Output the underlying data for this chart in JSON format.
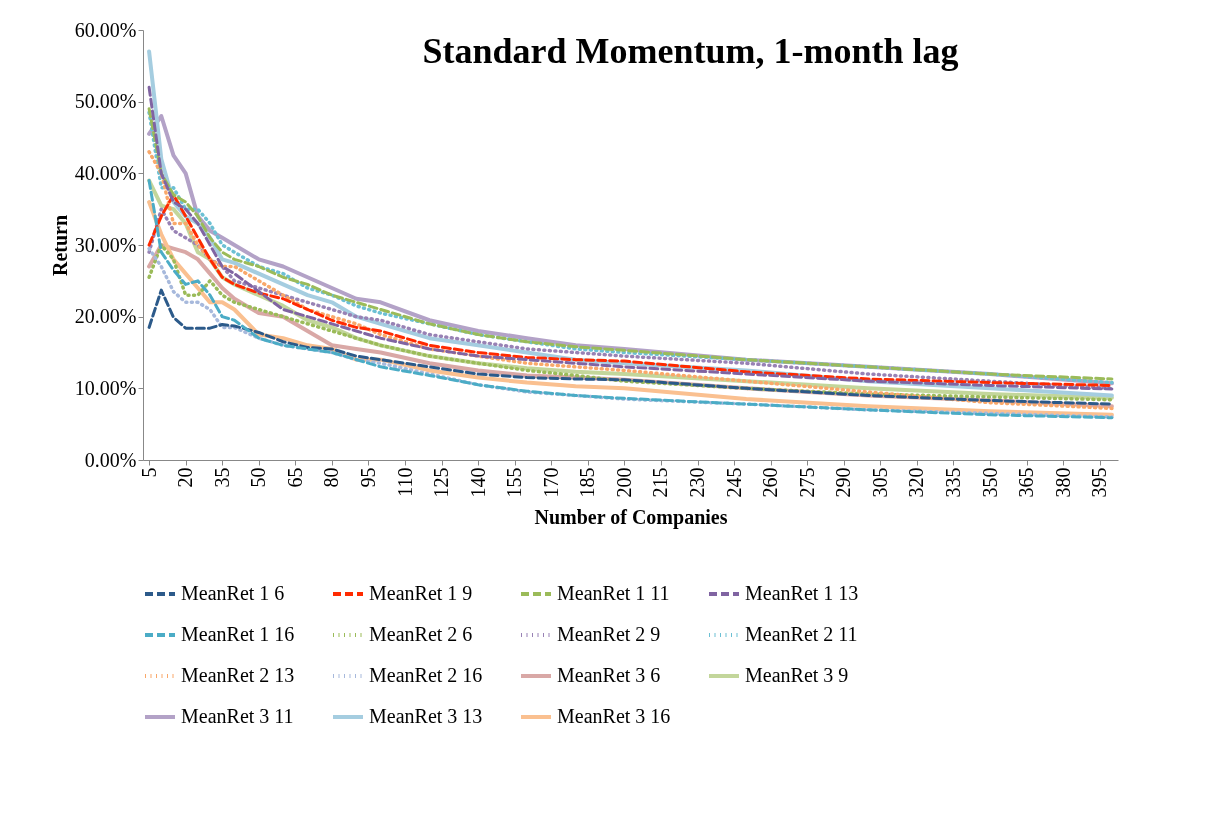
{
  "chart_data": {
    "type": "line",
    "title": "Standard Momentum, 1-month lag",
    "xlabel": "Number of Companies",
    "ylabel": "Return",
    "x": [
      5,
      10,
      15,
      20,
      25,
      30,
      35,
      40,
      50,
      60,
      70,
      80,
      90,
      100,
      120,
      140,
      160,
      180,
      200,
      250,
      300,
      350,
      400
    ],
    "xlim": [
      2.5,
      402.5
    ],
    "xticks": [
      5,
      20,
      35,
      50,
      65,
      80,
      95,
      110,
      125,
      140,
      155,
      170,
      185,
      200,
      215,
      230,
      245,
      260,
      275,
      290,
      305,
      320,
      335,
      350,
      365,
      380,
      395
    ],
    "ylim": [
      0,
      60
    ],
    "yticks": [
      {
        "value": 0,
        "label": "0.00%"
      },
      {
        "value": 10,
        "label": "10.00%"
      },
      {
        "value": 20,
        "label": "20.00%"
      },
      {
        "value": 30,
        "label": "30.00%"
      },
      {
        "value": 40,
        "label": "40.00%"
      },
      {
        "value": 50,
        "label": "50.00%"
      },
      {
        "value": 60,
        "label": "60.00%"
      }
    ],
    "grid": false,
    "legend": "bottom",
    "marker": "none",
    "series": [
      {
        "name": "MeanRet 1 6",
        "color": "#2c5a8a",
        "line_style": "dashed",
        "values": [
          18.5,
          23.7,
          19.9,
          18.4,
          18.4,
          18.4,
          18.9,
          18.7,
          17.8,
          16.5,
          15.7,
          15.5,
          14.5,
          14,
          13,
          12,
          11.5,
          11.3,
          11.2,
          10,
          9,
          8.3,
          7.8
        ]
      },
      {
        "name": "MeanRet 1 9",
        "color": "#ff2a00",
        "line_style": "dashed",
        "values": [
          30,
          34,
          37,
          34,
          31,
          28,
          25.5,
          24.5,
          23.3,
          22.5,
          21,
          19.5,
          18.5,
          18,
          16,
          15,
          14.3,
          14,
          13.8,
          12.3,
          11.3,
          10.8,
          10.4
        ]
      },
      {
        "name": "MeanRet 1 11",
        "color": "#9bbb59",
        "line_style": "dashed",
        "values": [
          49,
          40,
          37,
          36,
          34,
          31,
          29,
          28,
          27,
          25.5,
          24.5,
          23,
          22,
          21,
          19,
          17.5,
          16.5,
          15.8,
          15.3,
          14,
          13,
          12,
          11.3
        ]
      },
      {
        "name": "MeanRet 1 13",
        "color": "#8064a2",
        "line_style": "dashed",
        "values": [
          52,
          40,
          36,
          35,
          33,
          30,
          27,
          26,
          23.5,
          21,
          20,
          19,
          18,
          17,
          15.5,
          14.5,
          14,
          13.5,
          13,
          12,
          11,
          10.4,
          9.9
        ]
      },
      {
        "name": "MeanRet 1 16",
        "color": "#4bacc6",
        "line_style": "dashed",
        "values": [
          39,
          29,
          26.5,
          24.5,
          25,
          23,
          20,
          19.5,
          17,
          16,
          15.5,
          15,
          14,
          13,
          11.8,
          10.5,
          9.6,
          9,
          8.6,
          7.8,
          7,
          6.3,
          5.9
        ]
      },
      {
        "name": "MeanRet 2 6",
        "color": "#9bbb59",
        "line_style": "dotted",
        "values": [
          25.5,
          30,
          28,
          23,
          23,
          25,
          23,
          22,
          21,
          20,
          19,
          18,
          17,
          16,
          14.5,
          13.5,
          12.5,
          11.8,
          11,
          10,
          9.2,
          8.8,
          8.4
        ]
      },
      {
        "name": "MeanRet 2 9",
        "color": "#9882b5",
        "line_style": "dotted",
        "values": [
          29,
          35,
          32,
          31,
          30,
          28,
          27,
          25,
          24,
          23,
          22,
          21,
          20,
          19.5,
          17.5,
          16.5,
          15.5,
          15,
          14.5,
          13.5,
          12,
          11,
          10
        ]
      },
      {
        "name": "MeanRet 2 11",
        "color": "#6cc0d4",
        "line_style": "dotted",
        "values": [
          48.5,
          38,
          38,
          35,
          35,
          33,
          30,
          29,
          27,
          26,
          24,
          23,
          21.5,
          20.5,
          19,
          17.5,
          16.5,
          15.5,
          15,
          14,
          13,
          12,
          10.8
        ]
      },
      {
        "name": "MeanRet 2 13",
        "color": "#f9a86a",
        "line_style": "dotted",
        "values": [
          43,
          40,
          33,
          33,
          30,
          28,
          27,
          27,
          25,
          23,
          21,
          20,
          19,
          17.5,
          15.5,
          14.5,
          13.5,
          13,
          12.5,
          11,
          9.5,
          8,
          7.2
        ]
      },
      {
        "name": "MeanRet 2 16",
        "color": "#a7b9dc",
        "line_style": "dotted",
        "values": [
          29.5,
          27,
          23.5,
          22,
          22,
          21,
          18.5,
          18.5,
          17,
          16,
          15.5,
          15,
          14,
          13.5,
          12,
          10.5,
          9.5,
          9,
          8.5,
          7.8,
          7,
          6.5,
          6
        ]
      },
      {
        "name": "MeanRet 3 6",
        "color": "#d9a8a6",
        "line_style": "solid",
        "values": [
          27,
          30,
          29.5,
          29,
          28,
          26,
          24,
          22.5,
          20.5,
          20,
          18,
          16,
          15.5,
          15,
          13.5,
          12.5,
          11.8,
          11.5,
          11.2,
          10,
          9,
          8.3,
          7.5
        ]
      },
      {
        "name": "MeanRet 3 9",
        "color": "#c3d69b",
        "line_style": "solid",
        "values": [
          39,
          35.5,
          35,
          33,
          29,
          28,
          25.5,
          24.5,
          23,
          21.5,
          19.5,
          18.5,
          17,
          16,
          14.5,
          13.5,
          12.8,
          12.3,
          12,
          11,
          10,
          9.2,
          8.7
        ]
      },
      {
        "name": "MeanRet 3 11",
        "color": "#b3a2c7",
        "line_style": "solid",
        "values": [
          45.5,
          48,
          42.5,
          40,
          34,
          32,
          31,
          30,
          28,
          27,
          25.5,
          24,
          22.5,
          22,
          19.5,
          18,
          17,
          16,
          15.5,
          14,
          13,
          12,
          10.7
        ]
      },
      {
        "name": "MeanRet 3 13",
        "color": "#a5cde0",
        "line_style": "solid",
        "values": [
          57,
          42,
          36,
          34,
          33,
          31,
          28,
          27.5,
          26,
          24.5,
          23,
          22,
          20,
          19,
          17,
          16,
          15,
          14,
          13.5,
          12.5,
          11,
          10,
          9
        ]
      },
      {
        "name": "MeanRet 3 16",
        "color": "#fac090",
        "line_style": "solid",
        "values": [
          36,
          31.5,
          28,
          26,
          24,
          22,
          22,
          21,
          17.5,
          17,
          16,
          15.5,
          14,
          14,
          12.5,
          11.5,
          10.8,
          10.3,
          10,
          8.5,
          7.5,
          6.8,
          6.3
        ]
      }
    ]
  }
}
